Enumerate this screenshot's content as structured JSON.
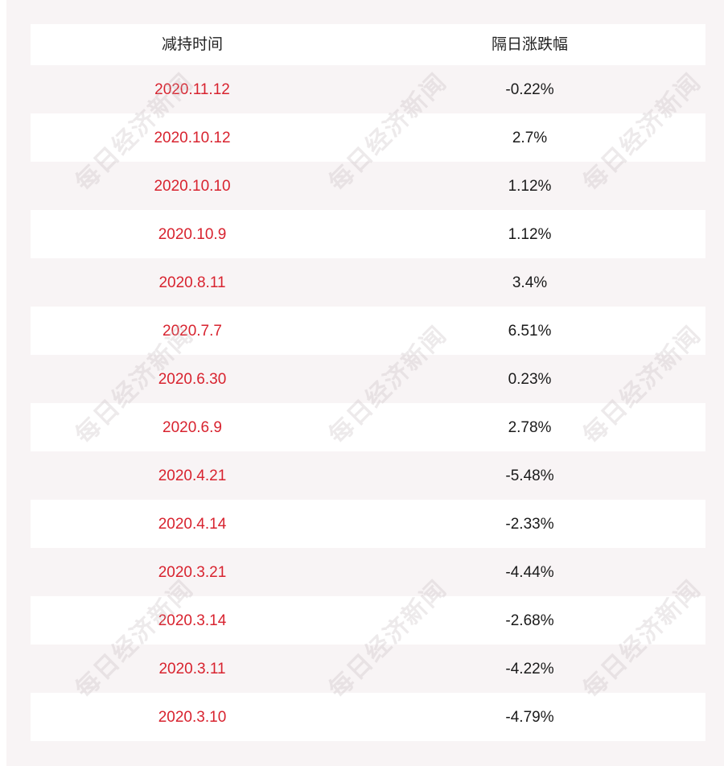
{
  "table": {
    "headers": [
      "减持时间",
      "隔日涨跌幅"
    ],
    "rows": [
      {
        "date": "2020.11.12",
        "change": "-0.22%"
      },
      {
        "date": "2020.10.12",
        "change": "2.7%"
      },
      {
        "date": "2020.10.10",
        "change": "1.12%"
      },
      {
        "date": "2020.10.9",
        "change": "1.12%"
      },
      {
        "date": "2020.8.11",
        "change": "3.4%"
      },
      {
        "date": "2020.7.7",
        "change": "6.51%"
      },
      {
        "date": "2020.6.30",
        "change": "0.23%"
      },
      {
        "date": "2020.6.9",
        "change": "2.78%"
      },
      {
        "date": "2020.4.21",
        "change": "-5.48%"
      },
      {
        "date": "2020.4.14",
        "change": "-2.33%"
      },
      {
        "date": "2020.3.21",
        "change": "-4.44%"
      },
      {
        "date": "2020.3.14",
        "change": "-2.68%"
      },
      {
        "date": "2020.3.11",
        "change": "-4.22%"
      },
      {
        "date": "2020.3.10",
        "change": "-4.79%"
      }
    ]
  },
  "watermark": {
    "text": "每日经济新闻"
  },
  "colors": {
    "date_text": "#d8232f",
    "value_text": "#1a1a1a",
    "stripe": "#f8f4f5",
    "background": "#ffffff"
  }
}
